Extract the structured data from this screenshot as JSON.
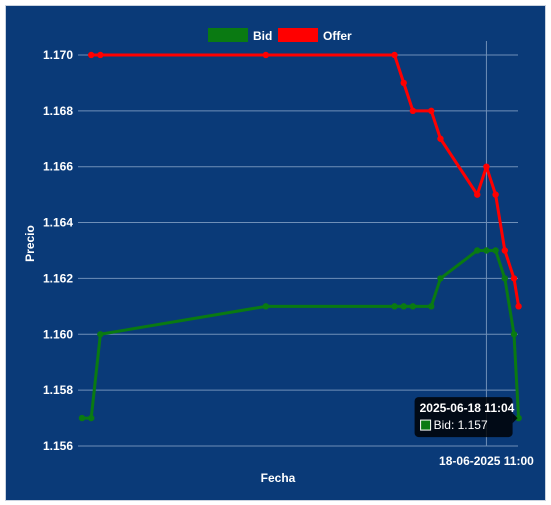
{
  "chart_data": {
    "type": "line",
    "title": "",
    "xlabel": "Fecha",
    "ylabel": "Precio",
    "ylim": [
      1.156,
      1.1705
    ],
    "yticks": [
      "1.156",
      "1.158",
      "1.160",
      "1.162",
      "1.164",
      "1.166",
      "1.168",
      "1.170"
    ],
    "xticks": [
      {
        "label": "18-06-2025 11:00",
        "x": 44
      }
    ],
    "xlim": [
      0,
      47
    ],
    "grid": true,
    "legend_position": "top-center",
    "series": [
      {
        "name": "Bid",
        "color": "#0a7a12",
        "x": [
          0,
          1,
          2,
          20,
          34,
          35,
          36,
          38,
          39,
          43,
          44,
          45,
          46,
          47,
          47.5
        ],
        "y": [
          1.157,
          1.157,
          1.16,
          1.161,
          1.161,
          1.161,
          1.161,
          1.161,
          1.162,
          1.163,
          1.163,
          1.163,
          1.162,
          1.16,
          1.157
        ]
      },
      {
        "name": "Offer",
        "color": "#ff0000",
        "x": [
          1,
          2,
          20,
          34,
          35,
          36,
          38,
          39,
          43,
          44,
          45,
          46,
          47,
          47.5
        ],
        "y": [
          1.17,
          1.17,
          1.17,
          1.17,
          1.169,
          1.168,
          1.168,
          1.167,
          1.165,
          1.166,
          1.165,
          1.163,
          1.162,
          1.161
        ]
      }
    ]
  },
  "tooltip": {
    "title": "2025-06-18 11:04",
    "series": "Bid",
    "value": "1.157",
    "text": "Bid: 1.157"
  }
}
